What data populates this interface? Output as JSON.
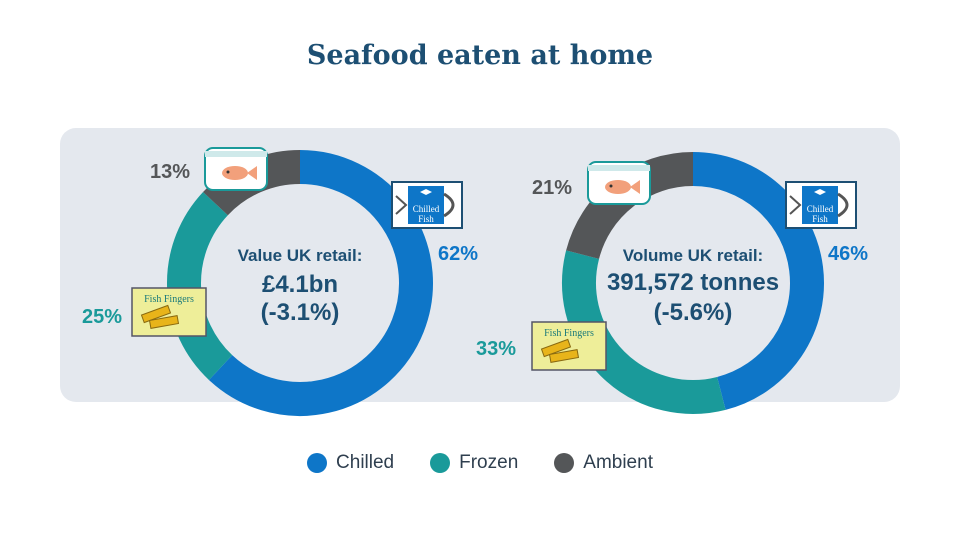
{
  "title": "Seafood eaten at home",
  "colors": {
    "chilled": "#0e76c8",
    "frozen": "#1a9a9a",
    "ambient": "#545658"
  },
  "icons": {
    "chilled": "chilled-fish-pack-icon",
    "frozen": "fish-fingers-box-icon",
    "ambient": "fish-tin-icon"
  },
  "icon_labels": {
    "chilled_line1": "Chilled",
    "chilled_line2": "Fish",
    "frozen": "Fish Fingers"
  },
  "legend": [
    {
      "label": "Chilled",
      "color": "#0e76c8"
    },
    {
      "label": "Frozen",
      "color": "#1a9a9a"
    },
    {
      "label": "Ambient",
      "color": "#545658"
    }
  ],
  "chart_data": [
    {
      "type": "pie",
      "title": "",
      "center_lines": [
        "Value UK retail:",
        "£4.1bn",
        "(-3.1%)"
      ],
      "categories": [
        "Chilled",
        "Frozen",
        "Ambient"
      ],
      "values": [
        62,
        25,
        13
      ],
      "labels": [
        "62%",
        "25%",
        "13%"
      ]
    },
    {
      "type": "pie",
      "title": "",
      "center_lines": [
        "Volume UK retail:",
        "391,572 tonnes",
        "(-5.6%)"
      ],
      "categories": [
        "Chilled",
        "Frozen",
        "Ambient"
      ],
      "values": [
        46,
        33,
        21
      ],
      "labels": [
        "46%",
        "33%",
        "21%"
      ]
    }
  ]
}
